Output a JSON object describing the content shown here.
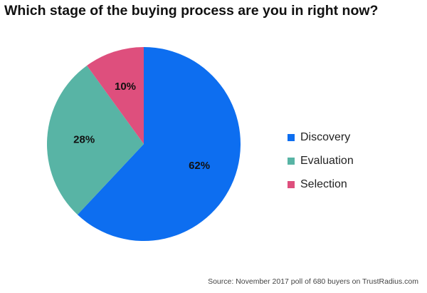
{
  "title": "Which stage of the buying process are you in right now?",
  "source": "Source: November 2017 poll of 680 buyers on TrustRadius.com",
  "chart_data": {
    "type": "pie",
    "title": "Which stage of the buying process are you in right now?",
    "start_angle_deg": 0,
    "direction": "clockwise",
    "legend_position": "right",
    "slices": [
      {
        "name": "Discovery",
        "value": 62,
        "label": "62%",
        "color": "#0d6ef0"
      },
      {
        "name": "Evaluation",
        "value": 28,
        "label": "28%",
        "color": "#58b4a5"
      },
      {
        "name": "Selection",
        "value": 10,
        "label": "10%",
        "color": "#de4f7d"
      }
    ]
  }
}
